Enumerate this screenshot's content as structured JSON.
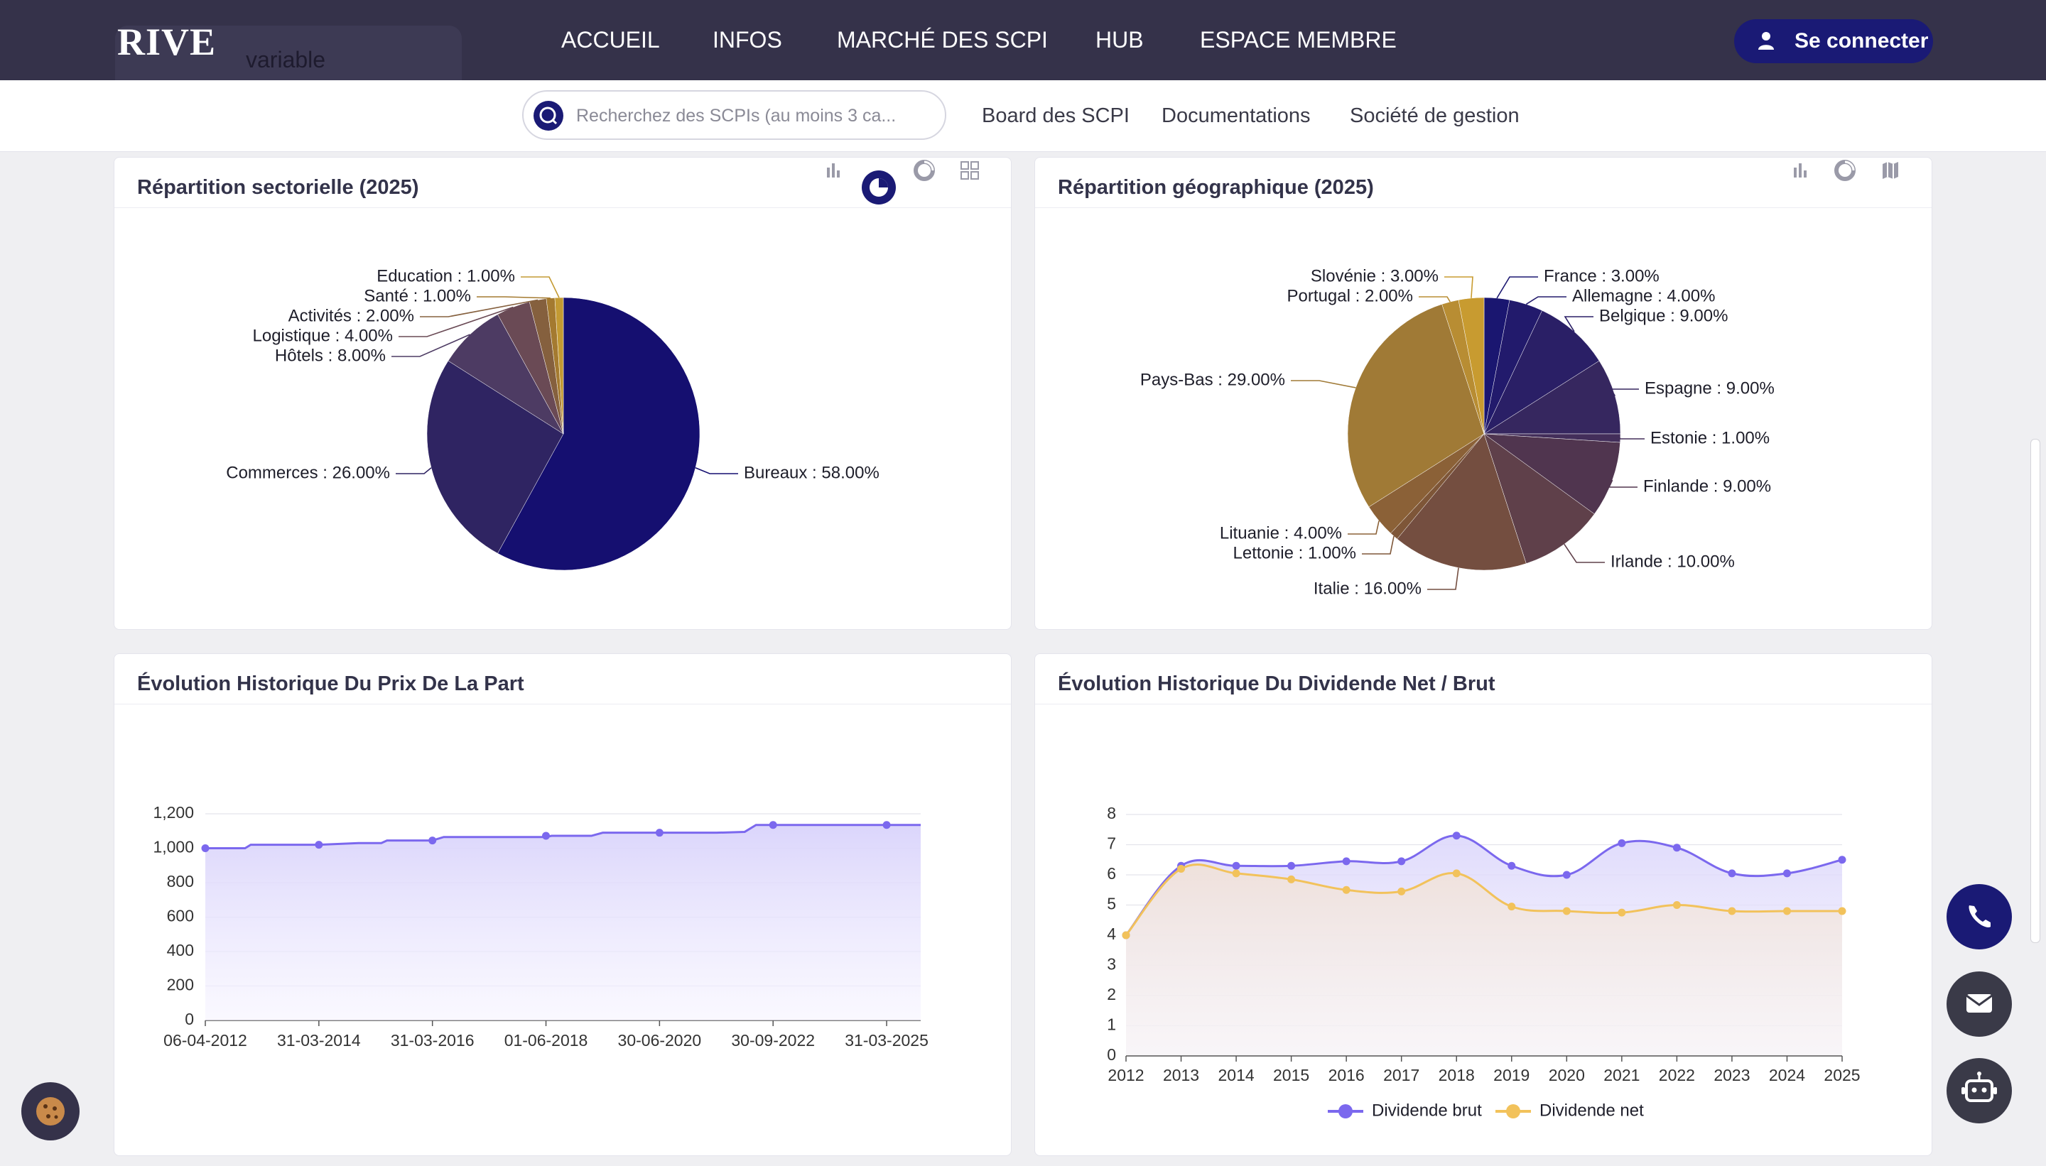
{
  "header": {
    "logo": "RIVE",
    "logo_sub": "variable",
    "nav": [
      "ACCUEIL",
      "INFOS",
      "MARCHÉ DES SCPI",
      "HUB",
      "ESPACE MEMBRE"
    ],
    "login_label": "Se connecter"
  },
  "subnav": {
    "search_placeholder": "Recherchez des SCPIs (au moins 3 ca...",
    "links": [
      "Board des SCPI",
      "Documentations",
      "Société de gestion"
    ]
  },
  "colors": {
    "nav_bg": "#35324a",
    "accent": "#1a1a75",
    "series_brut": "#7b68ee",
    "series_net": "#f2c25b"
  },
  "icons": [
    "user-icon",
    "search-icon",
    "bar-chart-icon",
    "pie-chart-icon",
    "donut-chart-icon",
    "grid-icon",
    "map-icon",
    "phone-icon",
    "mail-icon",
    "robot-icon",
    "cookie-icon"
  ],
  "chart_data": [
    {
      "id": "sector",
      "type": "pie",
      "title": "Répartition sectorielle (2025)",
      "slices": [
        {
          "label": "Bureaux",
          "value": 58.0,
          "text": "Bureaux : 58.00%",
          "color": "#150f70"
        },
        {
          "label": "Commerces",
          "value": 26.0,
          "text": "Commerces : 26.00%",
          "color": "#2f2462"
        },
        {
          "label": "Hôtels",
          "value": 8.0,
          "text": "Hôtels : 8.00%",
          "color": "#4d3b63"
        },
        {
          "label": "Logistique",
          "value": 4.0,
          "text": "Logistique : 4.00%",
          "color": "#6a4a55"
        },
        {
          "label": "Activités",
          "value": 2.0,
          "text": "Activités : 2.00%",
          "color": "#85603e"
        },
        {
          "label": "Santé",
          "value": 1.0,
          "text": "Santé : 1.00%",
          "color": "#a47a30"
        },
        {
          "label": "Education",
          "value": 1.0,
          "text": "Education : 1.00%",
          "color": "#c39a33"
        }
      ]
    },
    {
      "id": "geo",
      "type": "pie",
      "title": "Répartition géographique (2025)",
      "slices": [
        {
          "label": "France",
          "value": 3.0,
          "text": "France : 3.00%",
          "color": "#1a1670"
        },
        {
          "label": "Allemagne",
          "value": 4.0,
          "text": "Allemagne : 4.00%",
          "color": "#221a6c"
        },
        {
          "label": "Belgique",
          "value": 9.0,
          "text": "Belgique : 9.00%",
          "color": "#2a1f66"
        },
        {
          "label": "Espagne",
          "value": 9.0,
          "text": "Espagne : 9.00%",
          "color": "#36275f"
        },
        {
          "label": "Estonie",
          "value": 1.0,
          "text": "Estonie : 1.00%",
          "color": "#432e5a"
        },
        {
          "label": "Finlande",
          "value": 9.0,
          "text": "Finlande : 9.00%",
          "color": "#50354f"
        },
        {
          "label": "Irlande",
          "value": 10.0,
          "text": "Irlande : 10.00%",
          "color": "#5f404a"
        },
        {
          "label": "Italie",
          "value": 16.0,
          "text": "Italie : 16.00%",
          "color": "#744e40"
        },
        {
          "label": "Lettonie",
          "value": 1.0,
          "text": "Lettonie : 1.00%",
          "color": "#7e5638"
        },
        {
          "label": "Lituanie",
          "value": 4.0,
          "text": "Lituanie : 4.00%",
          "color": "#8b6137"
        },
        {
          "label": "Pays-Bas",
          "value": 29.0,
          "text": "Pays-Bas : 29.00%",
          "color": "#a07a36"
        },
        {
          "label": "Portugal",
          "value": 2.0,
          "text": "Portugal : 2.00%",
          "color": "#b88d33"
        },
        {
          "label": "Slovénie",
          "value": 3.0,
          "text": "Slovénie : 3.00%",
          "color": "#c89b30"
        }
      ]
    },
    {
      "id": "price",
      "type": "area",
      "title": "Évolution Historique Du Prix De La Part",
      "ylim": [
        0,
        1200
      ],
      "yticks": [
        "0",
        "200",
        "400",
        "600",
        "800",
        "1,000",
        "1,200"
      ],
      "xtick_labels": [
        "06-04-2012",
        "31-03-2014",
        "31-03-2016",
        "01-06-2018",
        "30-06-2020",
        "30-09-2022",
        "31-03-2025"
      ],
      "step_points": [
        [
          0,
          1000
        ],
        [
          0.35,
          1000
        ],
        [
          0.4,
          1020
        ],
        [
          1.0,
          1020
        ],
        [
          1.35,
          1030
        ],
        [
          1.55,
          1030
        ],
        [
          1.6,
          1045
        ],
        [
          2.0,
          1045
        ],
        [
          2.1,
          1065
        ],
        [
          3.0,
          1065
        ],
        [
          3.05,
          1072
        ],
        [
          3.4,
          1072
        ],
        [
          3.5,
          1090
        ],
        [
          4.0,
          1090
        ],
        [
          4.5,
          1090
        ],
        [
          4.75,
          1095
        ],
        [
          4.85,
          1135
        ],
        [
          5.0,
          1135
        ],
        [
          6.0,
          1135
        ],
        [
          6.3,
          1135
        ]
      ],
      "marker_points": [
        [
          0,
          1000
        ],
        [
          1.0,
          1020
        ],
        [
          2.0,
          1045
        ],
        [
          3.0,
          1072
        ],
        [
          4.0,
          1090
        ],
        [
          5.0,
          1135
        ],
        [
          6.0,
          1135
        ]
      ]
    },
    {
      "id": "dividend",
      "type": "area",
      "title": "Évolution Historique Du Dividende Net / Brut",
      "ylim": [
        0,
        8
      ],
      "yticks": [
        "0",
        "1",
        "2",
        "3",
        "4",
        "5",
        "6",
        "7",
        "8"
      ],
      "categories": [
        "2012",
        "2013",
        "2014",
        "2015",
        "2016",
        "2017",
        "2018",
        "2019",
        "2020",
        "2021",
        "2022",
        "2023",
        "2024",
        "2025"
      ],
      "series": [
        {
          "name": "Dividende brut",
          "color": "#7b68ee",
          "values": [
            4.0,
            6.3,
            6.3,
            6.3,
            6.45,
            6.45,
            7.3,
            6.3,
            6.0,
            7.05,
            6.9,
            6.05,
            6.05,
            6.5
          ]
        },
        {
          "name": "Dividende net",
          "color": "#f2c25b",
          "values": [
            4.0,
            6.2,
            6.05,
            5.85,
            5.5,
            5.45,
            6.05,
            4.95,
            4.8,
            4.75,
            5.0,
            4.8,
            4.8,
            4.8
          ]
        }
      ]
    }
  ]
}
